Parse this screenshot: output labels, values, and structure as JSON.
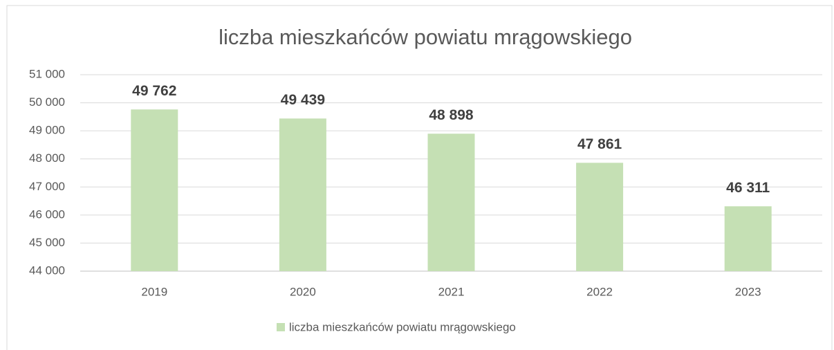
{
  "chart_data": {
    "type": "bar",
    "title": "liczba mieszkańców powiatu mrągowskiego",
    "categories": [
      "2019",
      "2020",
      "2021",
      "2022",
      "2023"
    ],
    "series": [
      {
        "name": "liczba mieszkańców powiatu mrągowskiego",
        "color": "#c5e0b4",
        "values": [
          49762,
          49439,
          48898,
          47861,
          46311
        ],
        "value_labels": [
          "49 762",
          "49 439",
          "48 898",
          "47 861",
          "46 311"
        ]
      }
    ],
    "ylim": [
      44000,
      51000
    ],
    "yticks": [
      {
        "value": 44000,
        "label": "44 000"
      },
      {
        "value": 45000,
        "label": "45 000"
      },
      {
        "value": 46000,
        "label": "46 000"
      },
      {
        "value": 47000,
        "label": "47 000"
      },
      {
        "value": 48000,
        "label": "48 000"
      },
      {
        "value": 49000,
        "label": "49 000"
      },
      {
        "value": 50000,
        "label": "50 000"
      },
      {
        "value": 51000,
        "label": "51 000"
      }
    ],
    "grid": true,
    "legend": "bottom"
  }
}
